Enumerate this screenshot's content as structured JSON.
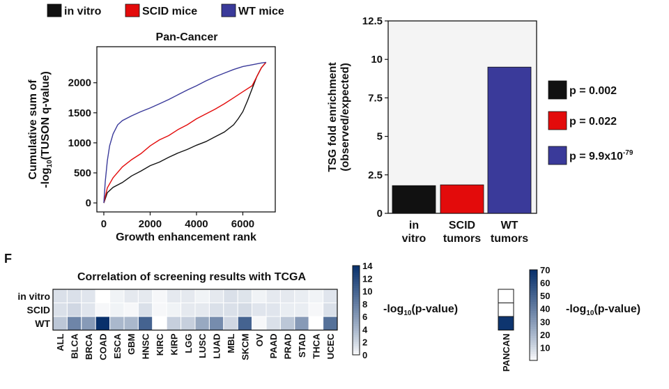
{
  "chart_data": [
    {
      "type": "line",
      "title": "Pan-Cancer",
      "xlabel": "Growth enhancement rank",
      "ylabel": {
        "line1": "Cumulative sum of",
        "line2_prefix": "-log",
        "line2_sub": "10",
        "line2_suffix": "(TUSON q-value)"
      },
      "xlim": [
        -300,
        7400
      ],
      "ylim": [
        -150,
        2600
      ],
      "xticks": [
        "0",
        "2000",
        "4000",
        "6000"
      ],
      "xtick_values": [
        0,
        2000,
        4000,
        6000
      ],
      "yticks": [
        "0",
        "500",
        "1000",
        "1500",
        "2000"
      ],
      "ytick_values": [
        0,
        500,
        1000,
        1500,
        2000
      ],
      "legend_placement": "top",
      "series": [
        {
          "name": "in vitro",
          "color": "#111111",
          "x": [
            0,
            150,
            400,
            800,
            1200,
            1600,
            2000,
            2400,
            2800,
            3200,
            3600,
            4000,
            4400,
            4800,
            5200,
            5600,
            5800,
            6000,
            6200,
            6400,
            6600,
            6800,
            7000
          ],
          "y": [
            0,
            170,
            260,
            340,
            450,
            530,
            620,
            680,
            760,
            830,
            890,
            960,
            1020,
            1100,
            1180,
            1300,
            1400,
            1520,
            1700,
            1900,
            2100,
            2250,
            2340
          ]
        },
        {
          "name": "SCID mice",
          "color": "#e30b0b",
          "x": [
            0,
            150,
            400,
            800,
            1200,
            1600,
            2000,
            2400,
            2800,
            3200,
            3600,
            4000,
            4400,
            4800,
            5200,
            5600,
            6000,
            6400,
            6800,
            7000
          ],
          "y": [
            0,
            250,
            420,
            600,
            720,
            820,
            950,
            1050,
            1120,
            1220,
            1300,
            1400,
            1480,
            1560,
            1650,
            1750,
            1850,
            1950,
            2250,
            2340
          ]
        },
        {
          "name": "WT mice",
          "color": "#3a3a9a",
          "x": [
            0,
            60,
            150,
            250,
            400,
            600,
            800,
            1200,
            1600,
            2000,
            2400,
            2800,
            3200,
            3600,
            4000,
            4400,
            4800,
            5200,
            5600,
            6000,
            6400,
            6800,
            7000
          ],
          "y": [
            0,
            350,
            700,
            950,
            1150,
            1300,
            1370,
            1450,
            1520,
            1580,
            1650,
            1720,
            1800,
            1880,
            1950,
            2030,
            2100,
            2160,
            2220,
            2270,
            2300,
            2330,
            2340
          ]
        }
      ]
    },
    {
      "type": "bar",
      "ylabel": {
        "line1": "TSG fold enrichment",
        "line2": "(observed/expected)"
      },
      "ylim": [
        0,
        12.5
      ],
      "yticks": [
        "0",
        "2.5",
        "5",
        "7.5",
        "10",
        "12.5"
      ],
      "ytick_values": [
        0,
        2.5,
        5,
        7.5,
        10,
        12.5
      ],
      "categories": [
        [
          "in",
          "vitro"
        ],
        [
          "SCID",
          "tumors"
        ],
        [
          "WT",
          "tumors"
        ]
      ],
      "values": [
        1.8,
        1.85,
        9.5
      ],
      "colors": [
        "#111111",
        "#e30b0b",
        "#3a3a9a"
      ],
      "legend": [
        {
          "color": "#111111",
          "text": "p = 0.002",
          "sup": ""
        },
        {
          "color": "#e30b0b",
          "text": "p = 0.022",
          "sup": ""
        },
        {
          "color": "#3a3a9a",
          "text": "p = 9.9x10",
          "sup": "-79"
        }
      ]
    },
    {
      "type": "heatmap",
      "title": "Correlation of screening results with TCGA",
      "rows": [
        "in vitro",
        "SCID",
        "WT"
      ],
      "columns": [
        "ALL",
        "BLCA",
        "BRCA",
        "COAD",
        "ESCA",
        "GBM",
        "HNSC",
        "KIRC",
        "KIRP",
        "LGG",
        "LUSC",
        "LUAD",
        "MBL",
        "SKCM",
        "OV",
        "PAAD",
        "PRAD",
        "STAD",
        "THCA",
        "UCEC"
      ],
      "values": [
        [
          1.5,
          1.5,
          1.2,
          0,
          0.5,
          1,
          1,
          0.3,
          1,
          1,
          0.5,
          1,
          1.5,
          1.3,
          0.5,
          1,
          1,
          0.8,
          0.5,
          1.2
        ],
        [
          1.5,
          2,
          1.2,
          0.3,
          0.5,
          0.3,
          1.5,
          0.3,
          0.5,
          1,
          1,
          1.5,
          1.5,
          1.8,
          1.2,
          1.2,
          0.8,
          0.8,
          0.3,
          1.5
        ],
        [
          3,
          7.5,
          6,
          14,
          4,
          4,
          10,
          0,
          2.5,
          2.5,
          5,
          7,
          2,
          10,
          0.3,
          1.5,
          3,
          6,
          0,
          9
        ]
      ],
      "colorbar": {
        "min": 0,
        "max": 14,
        "ticks": [
          "0",
          "2",
          "4",
          "6",
          "8",
          "10",
          "12",
          "14"
        ],
        "tick_values": [
          0,
          2,
          4,
          6,
          8,
          10,
          12,
          14
        ]
      },
      "colorbar_label": {
        "prefix": "-log",
        "sub": "10",
        "suffix": "(p-value)"
      }
    },
    {
      "type": "heatmap",
      "rows": [
        "in vitro",
        "SCID",
        "WT"
      ],
      "columns": [
        "PANCAN"
      ],
      "values": [
        [
          0
        ],
        [
          0
        ],
        [
          68
        ]
      ],
      "colorbar": {
        "min": 0,
        "max": 70,
        "ticks": [
          "10",
          "20",
          "30",
          "40",
          "50",
          "60",
          "70"
        ],
        "tick_values": [
          10,
          20,
          30,
          40,
          50,
          60,
          70
        ]
      },
      "colorbar_label": {
        "prefix": "-log",
        "sub": "10",
        "suffix": "(p-value)"
      }
    }
  ],
  "panel_label": "F"
}
